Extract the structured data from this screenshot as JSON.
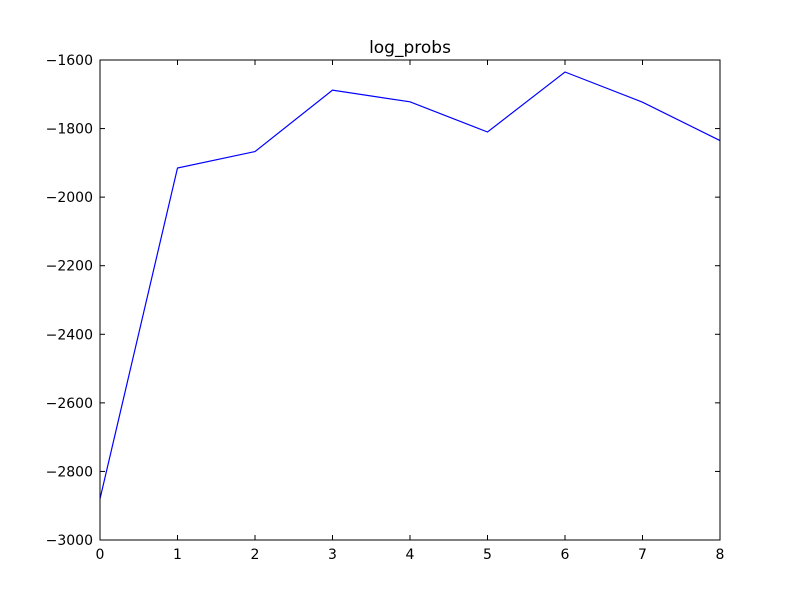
{
  "chart_data": {
    "type": "line",
    "title": "log_probs",
    "xlabel": "",
    "ylabel": "",
    "xlim": [
      0,
      8
    ],
    "ylim": [
      -3000,
      -1600
    ],
    "x_ticks": [
      0,
      1,
      2,
      3,
      4,
      5,
      6,
      7,
      8
    ],
    "x_tick_labels": [
      "0",
      "1",
      "2",
      "3",
      "4",
      "5",
      "6",
      "7",
      "8"
    ],
    "y_ticks": [
      -3000,
      -2800,
      -2600,
      -2400,
      -2200,
      -2000,
      -1800,
      -1600
    ],
    "y_tick_labels": [
      "−3000",
      "−2800",
      "−2600",
      "−2400",
      "−2200",
      "−2000",
      "−1800",
      "−1600"
    ],
    "grid": false,
    "series": [
      {
        "x": [
          0,
          1,
          2,
          3,
          4,
          5,
          6,
          7,
          8
        ],
        "values": [
          -2880,
          -1915,
          -1867,
          -1688,
          -1722,
          -1810,
          -1635,
          -1723,
          -1835
        ],
        "color": "#0000ff"
      }
    ]
  }
}
